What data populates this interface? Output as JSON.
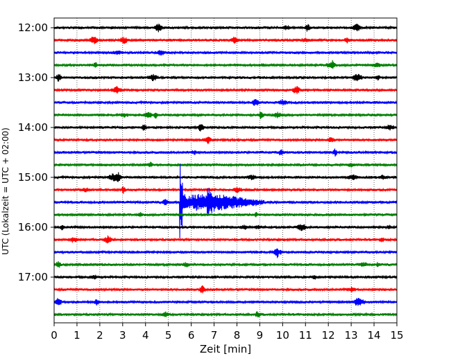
{
  "chart_data": {
    "type": "line",
    "xlabel": "Zeit  [min]",
    "ylabel": "UTC (Lokalzeit = UTC + 02:00)",
    "x_ticks": [
      "0",
      "1",
      "2",
      "3",
      "4",
      "5",
      "6",
      "7",
      "8",
      "9",
      "10",
      "11",
      "12",
      "13",
      "14",
      "15"
    ],
    "xlim": [
      0,
      15
    ],
    "y_ticks": [
      "12:00",
      "13:00",
      "14:00",
      "15:00",
      "16:00",
      "17:00"
    ],
    "row_interval_min": 15,
    "start_time": "12:00",
    "grid": "vertical dotted",
    "trace_colors": [
      "#000000",
      "#ff0000",
      "#0000ff",
      "#008000"
    ],
    "trace_count": 24,
    "events": [
      {
        "row_start": "15:30",
        "onset_min": 5.5,
        "secondary_onset_min": 6.7,
        "coda_end_min": 9.2
      }
    ]
  }
}
